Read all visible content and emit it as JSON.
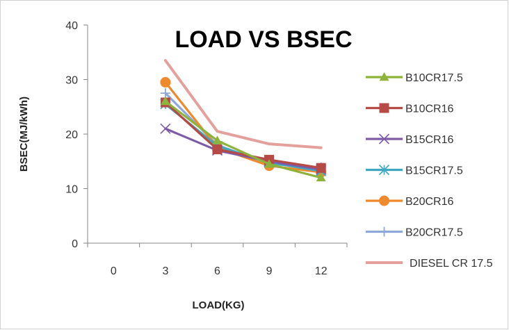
{
  "chart_data": {
    "type": "line",
    "title": "LOAD VS BSEC",
    "xlabel": "LOAD(KG)",
    "ylabel": "BSEC(MJ/kWh)",
    "categories": [
      "0",
      "3",
      "6",
      "9",
      "12"
    ],
    "ylim": [
      0,
      40
    ],
    "yticks": [
      0,
      10,
      20,
      30,
      40
    ],
    "grid": false,
    "legend_position": "right",
    "series": [
      {
        "name": "B10CR17.5",
        "color": "#8db33b",
        "marker": "triangle",
        "values": [
          null,
          26.0,
          18.8,
          14.5,
          12.0
        ]
      },
      {
        "name": "B10CR16",
        "color": "#b54a46",
        "marker": "square",
        "values": [
          null,
          25.8,
          17.2,
          15.3,
          13.8
        ]
      },
      {
        "name": "B15CR16",
        "color": "#7d5ba6",
        "marker": "x",
        "values": [
          null,
          21.0,
          17.0,
          15.0,
          13.5
        ]
      },
      {
        "name": "B15CR17.5",
        "color": "#3fa7c0",
        "marker": "asterisk",
        "values": [
          null,
          25.5,
          17.8,
          14.8,
          13.2
        ]
      },
      {
        "name": "B20CR16",
        "color": "#ef8a2c",
        "marker": "circle",
        "values": [
          null,
          29.5,
          17.5,
          14.2,
          13.0
        ]
      },
      {
        "name": "B20CR17.5",
        "color": "#8fa8dc",
        "marker": "plus",
        "values": [
          null,
          27.5,
          18.0,
          14.5,
          13.9
        ]
      },
      {
        "name": "DIESEL CR 17.5",
        "color": "#e3a09c",
        "marker": "none",
        "values": [
          null,
          33.5,
          20.5,
          18.2,
          17.5
        ]
      }
    ]
  }
}
